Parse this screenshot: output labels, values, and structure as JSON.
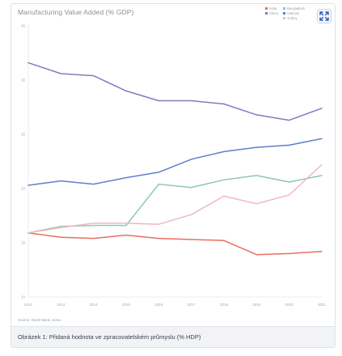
{
  "chart_data": {
    "type": "line",
    "title": "Manufacturing Value Added (% GDP)",
    "xlabel": "",
    "ylabel": "",
    "x": [
      "2012",
      "2013",
      "2014",
      "2015",
      "2016",
      "2017",
      "2018",
      "2019",
      "2020",
      "2021"
    ],
    "ylim": [
      10,
      35
    ],
    "yticks": [
      10,
      15,
      20,
      25,
      30,
      35
    ],
    "grid": false,
    "legend_position": "top-right",
    "series": [
      {
        "name": "India",
        "color": "#e8705f",
        "values": [
          15.9,
          15.5,
          15.4,
          15.7,
          15.4,
          15.3,
          15.2,
          13.9,
          14.0,
          14.2
        ]
      },
      {
        "name": "China",
        "color": "#8878c0",
        "values": [
          31.6,
          30.6,
          30.4,
          29.0,
          28.1,
          28.1,
          27.8,
          26.8,
          26.3,
          27.4
        ]
      },
      {
        "name": "Bangladesh",
        "color": "#8fc7b3",
        "values": [
          15.9,
          16.5,
          16.6,
          16.6,
          20.4,
          20.1,
          20.8,
          21.2,
          20.6,
          21.2
        ]
      },
      {
        "name": "Vietnam",
        "color": "#5d80cc",
        "values": [
          20.3,
          20.7,
          20.4,
          21.0,
          21.5,
          22.7,
          23.4,
          23.8,
          24.0,
          24.6
        ]
      },
      {
        "name": "Turkey",
        "color": "#f1b7c3",
        "values": [
          15.9,
          16.4,
          16.8,
          16.8,
          16.7,
          17.6,
          19.3,
          18.6,
          19.4,
          22.2
        ]
      }
    ],
    "source": "Source: World Bank, Sewx"
  },
  "caption": "Obrázek 1: Přidaná hodnota ve zpracovatelském průmyslu (% HDP)"
}
